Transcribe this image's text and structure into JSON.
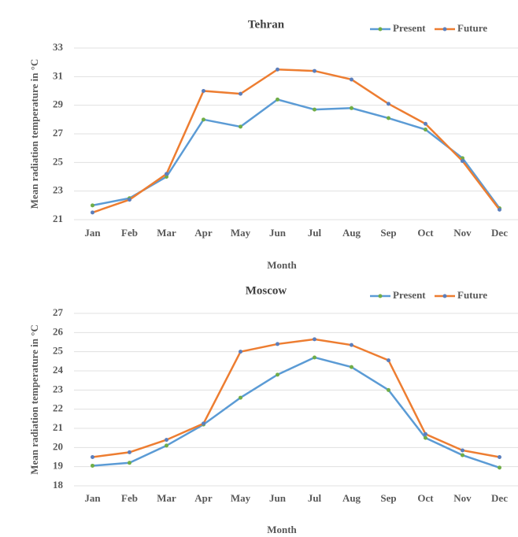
{
  "chart_data": [
    {
      "type": "line",
      "title": "Tehran",
      "x_label": "Month",
      "y_label": "Mean radiation temperature in °C",
      "categories": [
        "Jan",
        "Feb",
        "Mar",
        "Apr",
        "May",
        "Jun",
        "Jul",
        "Aug",
        "Sep",
        "Oct",
        "Nov",
        "Dec"
      ],
      "series": [
        {
          "name": "Present",
          "color": "#5b9bd5",
          "marker_color": "#70ad47",
          "values": [
            22.0,
            22.5,
            24.0,
            28.0,
            27.5,
            29.4,
            28.7,
            28.8,
            28.1,
            27.3,
            25.3,
            21.8
          ]
        },
        {
          "name": "Future",
          "color": "#ed7d31",
          "marker_color": "#5b7fbd",
          "values": [
            21.5,
            22.4,
            24.2,
            30.0,
            29.8,
            31.5,
            31.4,
            30.8,
            29.1,
            27.7,
            25.1,
            21.7
          ]
        }
      ],
      "ylim": [
        21,
        33
      ],
      "yticks": [
        21,
        23,
        25,
        27,
        29,
        31,
        33
      ],
      "grid": true,
      "legend": "top-right"
    },
    {
      "type": "line",
      "title": "Moscow",
      "x_label": "Month",
      "y_label": "Mean radiation temperature in °C",
      "categories": [
        "Jan",
        "Feb",
        "Mar",
        "Apr",
        "May",
        "Jun",
        "Jul",
        "Aug",
        "Sep",
        "Oct",
        "Nov",
        "Dec"
      ],
      "series": [
        {
          "name": "Present",
          "color": "#5b9bd5",
          "marker_color": "#70ad47",
          "values": [
            19.05,
            19.2,
            20.1,
            21.2,
            22.6,
            23.8,
            24.7,
            24.2,
            23.0,
            20.5,
            19.6,
            18.95
          ]
        },
        {
          "name": "Future",
          "color": "#ed7d31",
          "marker_color": "#5b7fbd",
          "values": [
            19.5,
            19.75,
            20.4,
            21.25,
            25.0,
            25.4,
            25.65,
            25.35,
            24.55,
            20.7,
            19.85,
            19.5
          ]
        }
      ],
      "ylim": [
        18,
        27
      ],
      "yticks": [
        18,
        19,
        20,
        21,
        22,
        23,
        24,
        25,
        26,
        27
      ],
      "grid": true,
      "legend": "top-right"
    }
  ]
}
